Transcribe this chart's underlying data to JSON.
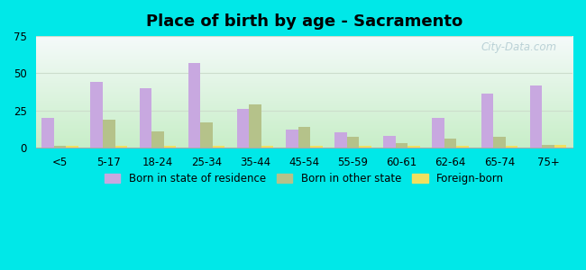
{
  "title": "Place of birth by age - Sacramento",
  "categories": [
    "<5",
    "5-17",
    "18-24",
    "25-34",
    "35-44",
    "45-54",
    "55-59",
    "60-61",
    "62-64",
    "65-74",
    "75+"
  ],
  "born_in_state": [
    20,
    44,
    40,
    57,
    26,
    12,
    10,
    8,
    20,
    36,
    42
  ],
  "born_other_state": [
    1,
    19,
    11,
    17,
    29,
    14,
    7,
    3,
    6,
    7,
    2
  ],
  "foreign_born": [
    1,
    1,
    1,
    1,
    1,
    1,
    1,
    1,
    1,
    1,
    2
  ],
  "color_state": "#c8a8e0",
  "color_other": "#b5c28a",
  "color_foreign": "#f0e060",
  "ylim": [
    0,
    75
  ],
  "yticks": [
    0,
    25,
    50,
    75
  ],
  "bar_width": 0.25,
  "legend_labels": [
    "Born in state of residence",
    "Born in other state",
    "Foreign-born"
  ],
  "watermark": "City-Data.com",
  "fig_bg": "#00e8e8",
  "grad_bottom": "#c8eec8",
  "grad_top": "#f5fafa"
}
